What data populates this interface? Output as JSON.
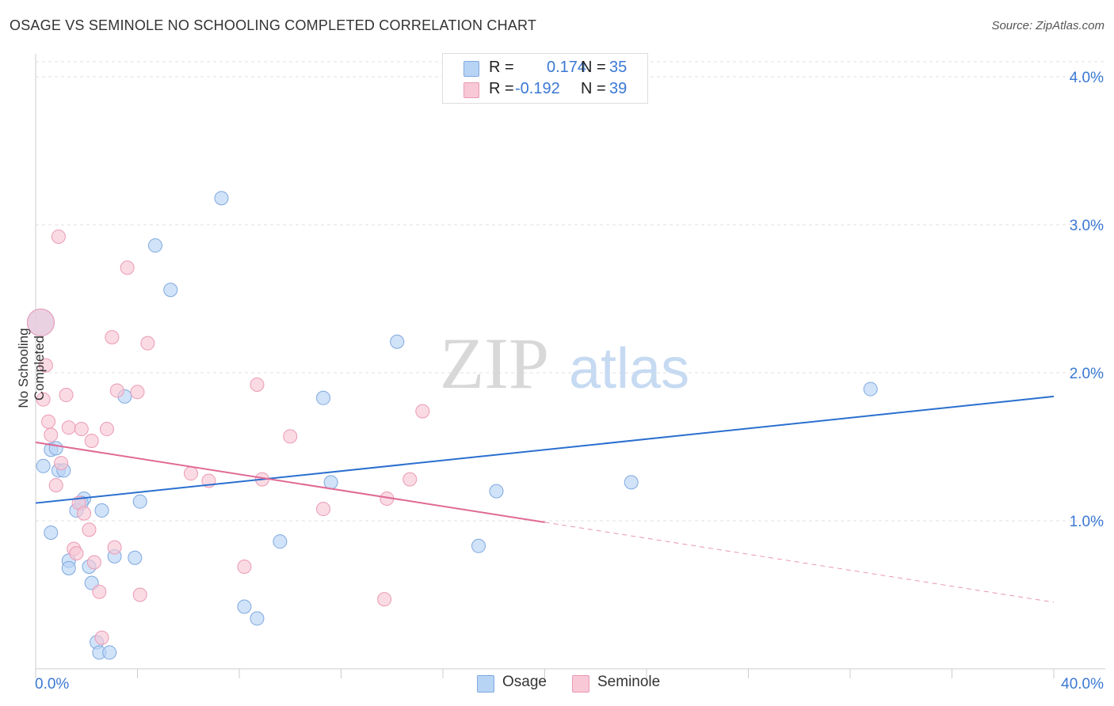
{
  "title": "OSAGE VS SEMINOLE NO SCHOOLING COMPLETED CORRELATION CHART",
  "source": "Source: ZipAtlas.com",
  "colors": {
    "osage_fill": "#b8d4f5",
    "osage_stroke": "#7fa8e0",
    "osage_line": "#2a6fcf",
    "seminole_fill": "#f8c8d6",
    "seminole_stroke": "#ec9ab4",
    "seminole_line": "#e06a95",
    "axis_text": "#3a78d4",
    "grid": "#e2e2e2"
  },
  "legend": {
    "rows": [
      {
        "r_label": "R =",
        "r_value": "0.174",
        "n_label": "N =",
        "n_value": "35"
      },
      {
        "r_label": "R =",
        "r_value": "-0.192",
        "n_label": "N =",
        "n_value": "39"
      }
    ]
  },
  "bottom_legend": [
    "Osage",
    "Seminole"
  ],
  "watermark": {
    "zip": "ZIP",
    "atlas": "atlas"
  },
  "chart_data": {
    "type": "scatter",
    "title": "OSAGE VS SEMINOLE NO SCHOOLING COMPLETED CORRELATION CHART",
    "xlabel": "",
    "ylabel": "No Schooling Completed",
    "xlim": [
      0,
      40
    ],
    "ylim": [
      0,
      4.2
    ],
    "x_tick_labels": [
      "0.0%",
      "40.0%"
    ],
    "y_ticks": [
      1.0,
      2.0,
      3.0,
      4.0
    ],
    "y_tick_labels": [
      "1.0%",
      "2.0%",
      "3.0%",
      "4.0%"
    ],
    "grid": true,
    "legend_position": "top-center",
    "series": [
      {
        "name": "Osage",
        "R": 0.174,
        "N": 35,
        "trend": {
          "x": [
            0,
            40
          ],
          "y": [
            1.12,
            1.84
          ]
        },
        "points": [
          [
            0.3,
            1.37
          ],
          [
            0.6,
            1.48
          ],
          [
            0.8,
            1.49
          ],
          [
            0.9,
            1.34
          ],
          [
            1.1,
            1.34
          ],
          [
            0.6,
            0.92
          ],
          [
            1.3,
            0.73
          ],
          [
            1.3,
            0.68
          ],
          [
            1.6,
            1.07
          ],
          [
            1.9,
            1.15
          ],
          [
            1.8,
            1.12
          ],
          [
            2.1,
            0.69
          ],
          [
            2.2,
            0.58
          ],
          [
            2.6,
            1.07
          ],
          [
            3.1,
            0.76
          ],
          [
            2.4,
            0.18
          ],
          [
            2.5,
            0.11
          ],
          [
            2.9,
            0.11
          ],
          [
            3.9,
            0.75
          ],
          [
            4.1,
            1.13
          ],
          [
            3.5,
            1.84
          ],
          [
            4.7,
            2.86
          ],
          [
            5.3,
            2.56
          ],
          [
            7.3,
            3.18
          ],
          [
            8.2,
            0.42
          ],
          [
            8.7,
            0.34
          ],
          [
            9.6,
            0.86
          ],
          [
            11.3,
            1.83
          ],
          [
            11.6,
            1.26
          ],
          [
            14.2,
            2.21
          ],
          [
            17.4,
            0.83
          ],
          [
            18.1,
            1.2
          ],
          [
            23.4,
            1.26
          ],
          [
            32.8,
            1.89
          ],
          [
            0.2,
            2.34
          ]
        ]
      },
      {
        "name": "Seminole",
        "R": -0.192,
        "N": 39,
        "trend": {
          "x": [
            0,
            20
          ],
          "y": [
            1.53,
            0.99
          ]
        },
        "trend_dashed": {
          "x": [
            20,
            40
          ],
          "y": [
            0.99,
            0.45
          ]
        },
        "points": [
          [
            0.2,
            2.34
          ],
          [
            0.3,
            1.82
          ],
          [
            0.4,
            2.05
          ],
          [
            0.5,
            1.67
          ],
          [
            0.6,
            1.58
          ],
          [
            0.8,
            1.24
          ],
          [
            0.9,
            2.92
          ],
          [
            1.0,
            1.39
          ],
          [
            1.2,
            1.85
          ],
          [
            1.3,
            1.63
          ],
          [
            1.5,
            0.81
          ],
          [
            1.6,
            0.78
          ],
          [
            1.7,
            1.12
          ],
          [
            1.8,
            1.62
          ],
          [
            1.9,
            1.05
          ],
          [
            2.1,
            0.94
          ],
          [
            2.2,
            1.54
          ],
          [
            2.3,
            0.72
          ],
          [
            2.5,
            0.52
          ],
          [
            2.6,
            0.21
          ],
          [
            2.8,
            1.62
          ],
          [
            3.0,
            2.24
          ],
          [
            3.1,
            0.82
          ],
          [
            3.2,
            1.88
          ],
          [
            3.6,
            2.71
          ],
          [
            4.0,
            1.87
          ],
          [
            4.1,
            0.5
          ],
          [
            4.4,
            2.2
          ],
          [
            6.1,
            1.32
          ],
          [
            6.8,
            1.27
          ],
          [
            8.2,
            0.69
          ],
          [
            8.7,
            1.92
          ],
          [
            8.9,
            1.28
          ],
          [
            10.0,
            1.57
          ],
          [
            11.3,
            1.08
          ],
          [
            13.7,
            0.47
          ],
          [
            13.8,
            1.15
          ],
          [
            14.7,
            1.28
          ],
          [
            15.2,
            1.74
          ]
        ]
      }
    ]
  }
}
